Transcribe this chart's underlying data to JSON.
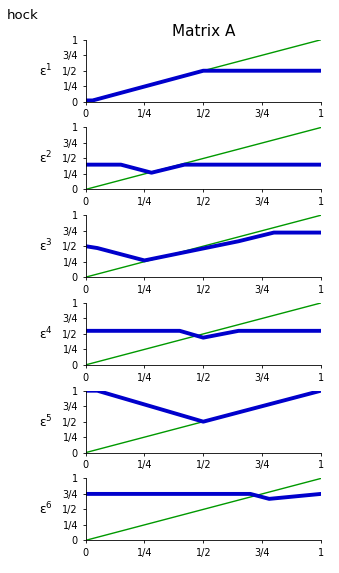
{
  "title": "Matrix A",
  "col_label": "hock",
  "ylabel_prefix": "ε",
  "row_labels": [
    "1",
    "2",
    "3",
    "4",
    "5",
    "6"
  ],
  "xlim": [
    0,
    1
  ],
  "ylim": [
    0,
    1
  ],
  "yticks": [
    0,
    0.25,
    0.5,
    0.75,
    1.0
  ],
  "ytick_labels": [
    "0",
    "1/4",
    "1/2",
    "3/4",
    "1"
  ],
  "xticks": [
    0,
    0.25,
    0.5,
    0.75,
    1.0
  ],
  "xtick_labels": [
    "0",
    "1/4",
    "1/2",
    "3/4",
    "1"
  ],
  "green_line_x": [
    0,
    1
  ],
  "green_line_y": [
    0,
    1
  ],
  "blue_lines": [
    {
      "x": [
        0,
        0.03,
        0.5,
        1.0
      ],
      "y": [
        0.02,
        0.02,
        0.5,
        0.5
      ]
    },
    {
      "x": [
        0,
        0.15,
        0.28,
        0.42,
        1.0
      ],
      "y": [
        0.4,
        0.4,
        0.27,
        0.4,
        0.4
      ]
    },
    {
      "x": [
        0,
        0.05,
        0.25,
        0.65,
        0.8,
        1.0
      ],
      "y": [
        0.5,
        0.47,
        0.27,
        0.58,
        0.72,
        0.72
      ]
    },
    {
      "x": [
        0,
        0.4,
        0.5,
        0.65,
        1.0
      ],
      "y": [
        0.55,
        0.55,
        0.44,
        0.55,
        0.55
      ]
    },
    {
      "x": [
        0,
        0.05,
        0.5,
        1.0
      ],
      "y": [
        1.0,
        1.0,
        0.5,
        1.0
      ]
    },
    {
      "x": [
        0,
        0.7,
        0.78,
        1.0
      ],
      "y": [
        0.75,
        0.75,
        0.67,
        0.75
      ]
    }
  ],
  "blue_color": "#0000CC",
  "green_color": "#009900",
  "blue_lw": 2.8,
  "green_lw": 1.0,
  "bg_color": "#ffffff",
  "title_fontsize": 11,
  "tick_fontsize": 7,
  "ylabel_fontsize": 9
}
